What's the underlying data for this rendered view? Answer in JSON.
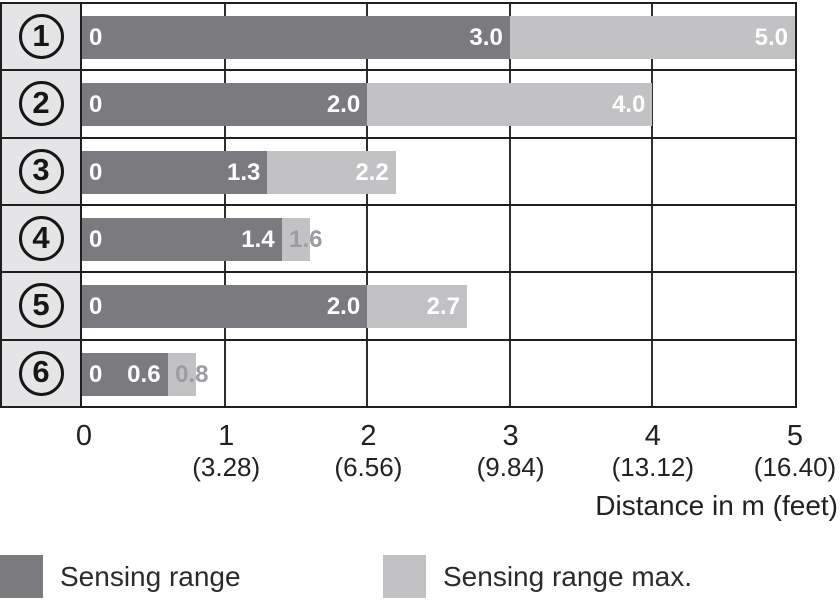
{
  "colors": {
    "sense": "#7b7b7f",
    "max": "#c2c2c5",
    "head-bg": "#e5e5e7",
    "border": "#1f1f1f",
    "grid": "#2e2e2e",
    "bar-text": "#ffffff",
    "gray-text": "#9d9da1",
    "axis-text": "#222222"
  },
  "chart_data": {
    "type": "bar",
    "orientation": "horizontal",
    "xlabel": "Distance in m (feet)",
    "xlim": [
      0,
      5
    ],
    "grid": "vertical gridlines at each integer",
    "legend_position": "bottom",
    "categories": [
      "1",
      "2",
      "3",
      "4",
      "5",
      "6"
    ],
    "series": [
      {
        "name": "Sensing range",
        "values": [
          3.0,
          2.0,
          1.3,
          1.4,
          2.0,
          0.6
        ]
      },
      {
        "name": "Sensing range max.",
        "values": [
          5.0,
          4.0,
          2.2,
          1.6,
          2.7,
          0.8
        ]
      }
    ],
    "rows": [
      {
        "id": "1",
        "zero_label": "0",
        "sense": 3.0,
        "sense_label": "3.0",
        "max": 5.0,
        "max_label": "5.0",
        "max_label_placement": "inside"
      },
      {
        "id": "2",
        "zero_label": "0",
        "sense": 2.0,
        "sense_label": "2.0",
        "max": 4.0,
        "max_label": "4.0",
        "max_label_placement": "inside"
      },
      {
        "id": "3",
        "zero_label": "0",
        "sense": 1.3,
        "sense_label": "1.3",
        "max": 2.2,
        "max_label": "2.2",
        "max_label_placement": "inside"
      },
      {
        "id": "4",
        "zero_label": "0",
        "sense": 1.4,
        "sense_label": "1.4",
        "max": 1.6,
        "max_label": "1.6",
        "max_label_placement": "edge"
      },
      {
        "id": "5",
        "zero_label": "0",
        "sense": 2.0,
        "sense_label": "2.0",
        "max": 2.7,
        "max_label": "2.7",
        "max_label_placement": "inside"
      },
      {
        "id": "6",
        "zero_label": "0",
        "sense": 0.6,
        "sense_label": "0.6",
        "max": 0.8,
        "max_label": "0.8",
        "max_label_placement": "edge"
      }
    ],
    "x_ticks": [
      {
        "m": "0",
        "feet": ""
      },
      {
        "m": "1",
        "feet": "(3.28)"
      },
      {
        "m": "2",
        "feet": "(6.56)"
      },
      {
        "m": "3",
        "feet": "(9.84)"
      },
      {
        "m": "4",
        "feet": "(13.12)"
      },
      {
        "m": "5",
        "feet": "(16.40)"
      }
    ],
    "legend": [
      {
        "name": "Sensing range",
        "color_key": "sense"
      },
      {
        "name": "Sensing range max.",
        "color_key": "max"
      }
    ]
  }
}
